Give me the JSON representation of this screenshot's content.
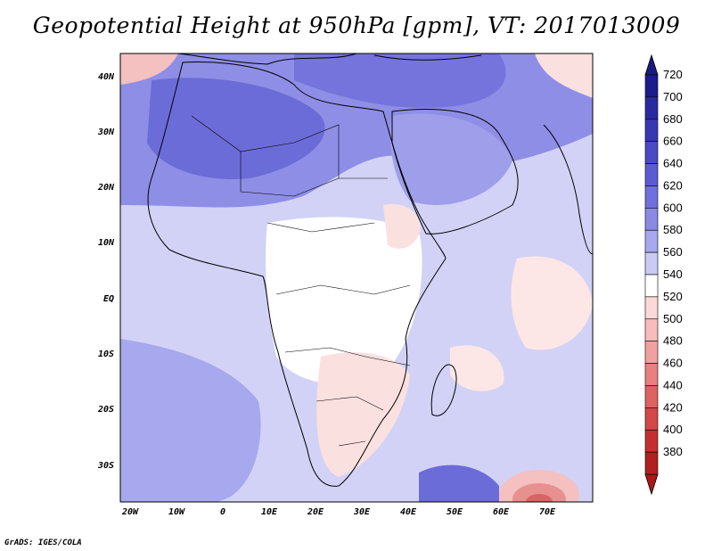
{
  "title": "Geopotential Height at 950hPa [gpm], VT: 2017013009",
  "credit": "GrADS: IGES/COLA",
  "map": {
    "variable": "Geopotential Height",
    "level": "950hPa",
    "units": "gpm",
    "valid_time": "2017013009",
    "lat_ticks": [
      "40N",
      "30N",
      "20N",
      "10N",
      "EQ",
      "10S",
      "20S",
      "30S"
    ],
    "lon_ticks": [
      "20W",
      "10W",
      "0",
      "10E",
      "20E",
      "30E",
      "40E",
      "50E",
      "60E",
      "70E"
    ]
  },
  "colorbar": {
    "levels": [
      720,
      700,
      680,
      660,
      640,
      620,
      600,
      580,
      560,
      540,
      520,
      500,
      480,
      460,
      440,
      420,
      400,
      380
    ],
    "colors": [
      "#1c1c8a",
      "#2a2aa0",
      "#3838b4",
      "#4a4ac6",
      "#5c5cd2",
      "#7070dc",
      "#8a8ae4",
      "#a8a8ee",
      "#cacaf4",
      "#ffffff",
      "#fcd8d8",
      "#f8bcbc",
      "#f0a0a0",
      "#e88080",
      "#de6262",
      "#d44848",
      "#c43030",
      "#b02020"
    ]
  },
  "colors": {
    "land_outline": "#000000",
    "background": "#ffffff"
  }
}
